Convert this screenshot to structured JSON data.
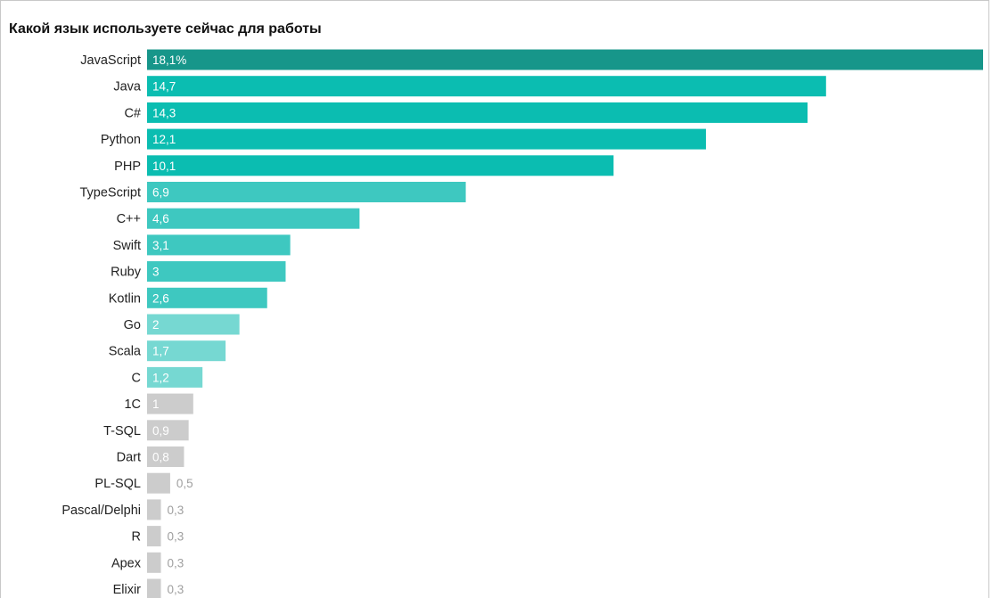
{
  "chart_data": {
    "type": "bar",
    "orientation": "horizontal",
    "title": "Какой язык используете сейчас для работы",
    "categories": [
      "JavaScript",
      "Java",
      "C#",
      "Python",
      "PHP",
      "TypeScript",
      "C++",
      "Swift",
      "Ruby",
      "Kotlin",
      "Go",
      "Scala",
      "C",
      "1C",
      "T-SQL",
      "Dart",
      "PL-SQL",
      "Pascal/Delphi",
      "R",
      "Apex",
      "Elixir"
    ],
    "values": [
      18.1,
      14.7,
      14.3,
      12.1,
      10.1,
      6.9,
      4.6,
      3.1,
      3,
      2.6,
      2,
      1.7,
      1.2,
      1,
      0.9,
      0.8,
      0.5,
      0.3,
      0.3,
      0.3,
      0.3
    ],
    "value_labels": [
      "18,1%",
      "14,7",
      "14,3",
      "12,1",
      "10,1",
      "6,9",
      "4,6",
      "3,1",
      "3",
      "2,6",
      "2",
      "1,7",
      "1,2",
      "1",
      "0,9",
      "0,8",
      "0,5",
      "0,3",
      "0,3",
      "0,3",
      "0,3"
    ],
    "colors": [
      "#17968a",
      "#0bbdb1",
      "#0bbdb1",
      "#0bbdb1",
      "#0bbdb1",
      "#3ec8c0",
      "#3ec8c0",
      "#3ec8c0",
      "#3ec8c0",
      "#3ec8c0",
      "#76d8d2",
      "#76d8d2",
      "#76d8d2",
      "#cccccc",
      "#cccccc",
      "#cccccc",
      "#cccccc",
      "#cccccc",
      "#cccccc",
      "#cccccc",
      "#cccccc"
    ],
    "label_inside_color": "#ffffff",
    "label_outside_color": "#a0a0a0",
    "xlim": [
      0,
      18.1
    ],
    "grid": false,
    "legend": "none"
  }
}
